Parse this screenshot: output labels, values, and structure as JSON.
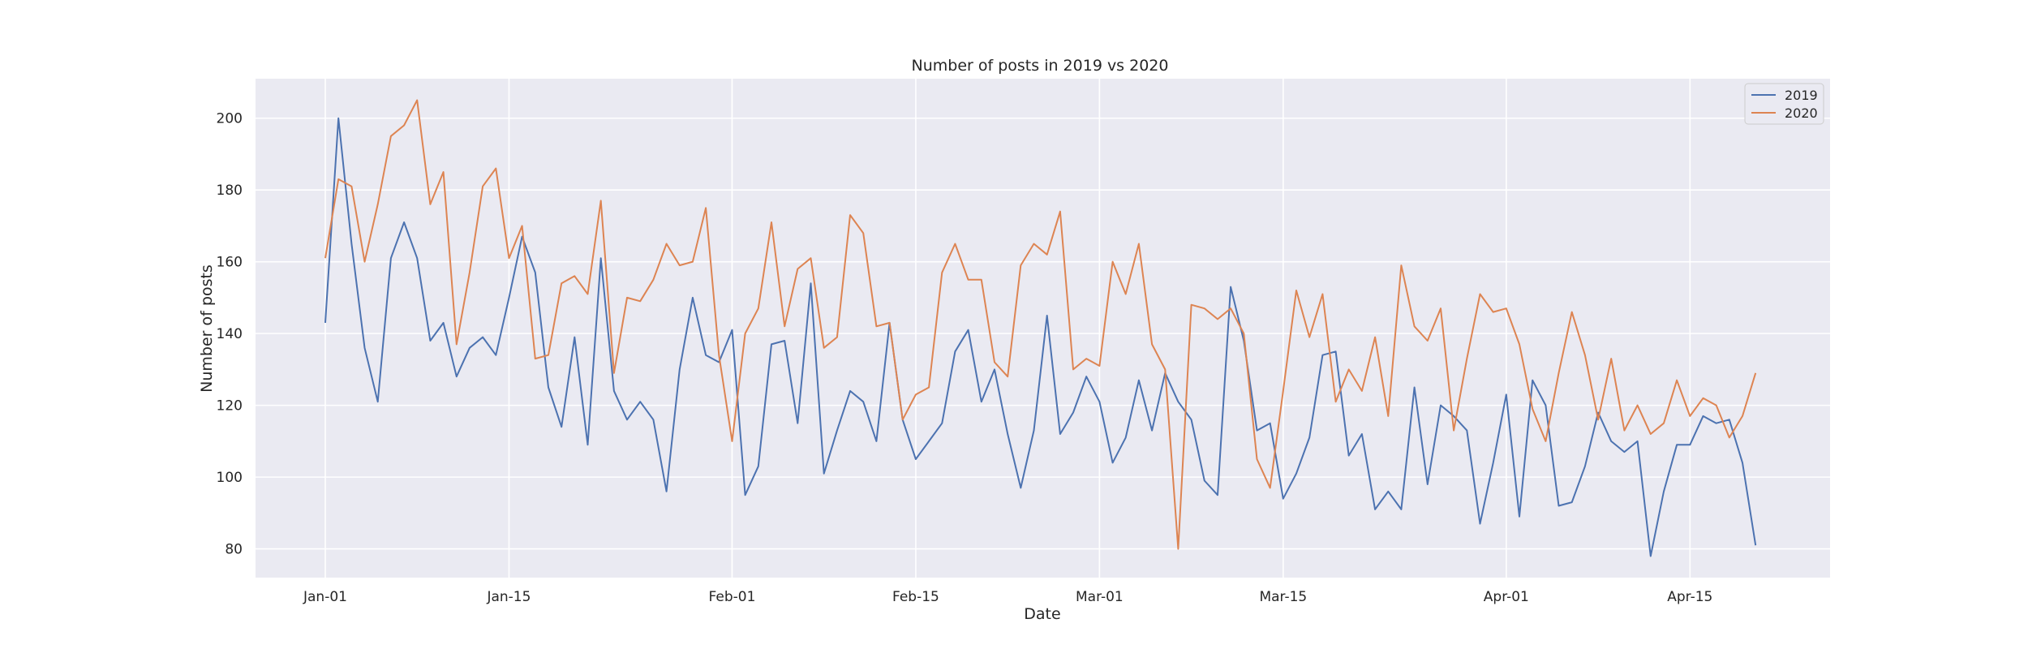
{
  "chart_data": {
    "type": "line",
    "title": "Number of posts in 2019 vs 2020",
    "xlabel": "Date",
    "ylabel": "Number of posts",
    "x_start": "2019-01-01",
    "x_ticks": [
      {
        "label": "Jan-01",
        "date": "2019-01-01"
      },
      {
        "label": "Jan-15",
        "date": "2019-01-15"
      },
      {
        "label": "Feb-01",
        "date": "2019-02-01"
      },
      {
        "label": "Feb-15",
        "date": "2019-02-15"
      },
      {
        "label": "Mar-01",
        "date": "2019-03-01"
      },
      {
        "label": "Mar-15",
        "date": "2019-03-15"
      },
      {
        "label": "Apr-01",
        "date": "2019-04-01"
      },
      {
        "label": "Apr-15",
        "date": "2019-04-15"
      }
    ],
    "y_ticks": [
      80,
      100,
      120,
      140,
      160,
      180,
      200
    ],
    "ylim": [
      72,
      211
    ],
    "grid": true,
    "legend_position": "top-right",
    "series": [
      {
        "name": "2019",
        "color": "#4c72b0",
        "values": [
          143,
          200,
          165,
          136,
          121,
          161,
          171,
          161,
          138,
          143,
          128,
          136,
          139,
          134,
          150,
          167,
          157,
          125,
          114,
          139,
          109,
          161,
          124,
          116,
          121,
          116,
          96,
          130,
          150,
          134,
          132,
          141,
          95,
          103,
          137,
          138,
          115,
          154,
          101,
          113,
          124,
          121,
          110,
          143,
          116,
          105,
          110,
          115,
          135,
          141,
          121,
          130,
          112,
          97,
          113,
          145,
          112,
          118,
          128,
          121,
          104,
          111,
          127,
          113,
          129,
          121,
          116,
          99,
          95,
          153,
          138,
          113,
          115,
          94,
          101,
          111,
          134,
          135,
          106,
          112,
          91,
          96,
          91,
          125,
          98,
          120,
          117,
          113,
          87,
          104,
          123,
          89,
          127,
          120,
          92,
          93,
          103,
          118,
          110,
          107,
          110,
          78,
          96,
          109,
          109,
          117,
          115,
          116,
          104,
          81
        ]
      },
      {
        "name": "2020",
        "color": "#dd8452",
        "values": [
          161,
          183,
          181,
          160,
          176,
          195,
          198,
          205,
          176,
          185,
          137,
          157,
          181,
          186,
          161,
          170,
          133,
          134,
          154,
          156,
          151,
          177,
          129,
          150,
          149,
          155,
          165,
          159,
          160,
          175,
          134,
          110,
          140,
          147,
          171,
          142,
          158,
          161,
          136,
          139,
          173,
          168,
          142,
          143,
          116,
          123,
          125,
          157,
          165,
          155,
          155,
          132,
          128,
          159,
          165,
          162,
          174,
          130,
          133,
          131,
          160,
          151,
          165,
          137,
          130,
          80,
          148,
          147,
          144,
          147,
          140,
          105,
          97,
          124,
          152,
          139,
          151,
          121,
          130,
          124,
          139,
          117,
          159,
          142,
          138,
          147,
          113,
          133,
          151,
          146,
          147,
          137,
          119,
          110,
          129,
          146,
          134,
          116,
          133,
          113,
          120,
          112,
          115,
          127,
          117,
          122,
          120,
          111,
          117,
          129
        ]
      }
    ]
  }
}
